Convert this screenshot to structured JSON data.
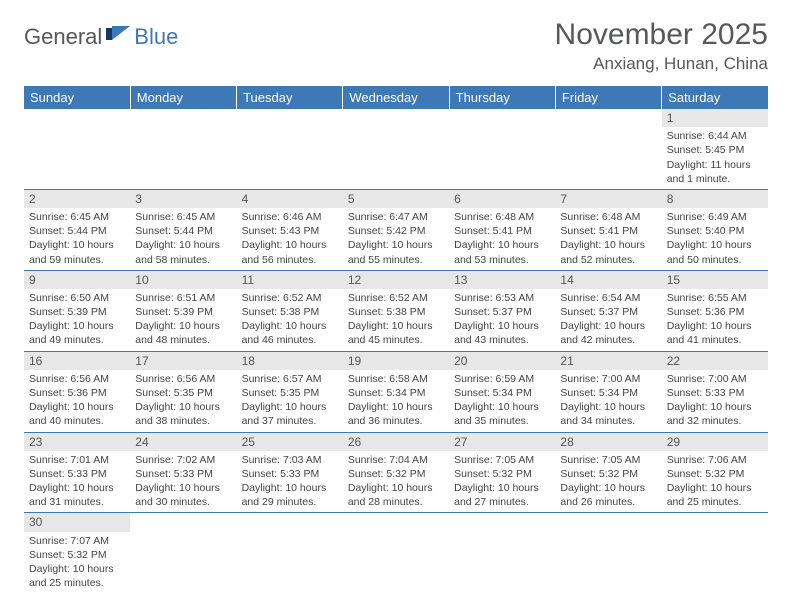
{
  "logo": {
    "text1": "General",
    "text2": "Blue"
  },
  "title": "November 2025",
  "location": "Anxiang, Hunan, China",
  "colors": {
    "header_bg": "#3c79b6",
    "header_text": "#ffffff",
    "daynum_bg": "#e7e7e8",
    "row_divider": "#3c79b6",
    "title_color": "#57585a"
  },
  "weekdays": [
    "Sunday",
    "Monday",
    "Tuesday",
    "Wednesday",
    "Thursday",
    "Friday",
    "Saturday"
  ],
  "weeks": [
    [
      null,
      null,
      null,
      null,
      null,
      null,
      {
        "n": "1",
        "sr": "Sunrise: 6:44 AM",
        "ss": "Sunset: 5:45 PM",
        "dl1": "Daylight: 11 hours",
        "dl2": "and 1 minute."
      }
    ],
    [
      {
        "n": "2",
        "sr": "Sunrise: 6:45 AM",
        "ss": "Sunset: 5:44 PM",
        "dl1": "Daylight: 10 hours",
        "dl2": "and 59 minutes."
      },
      {
        "n": "3",
        "sr": "Sunrise: 6:45 AM",
        "ss": "Sunset: 5:44 PM",
        "dl1": "Daylight: 10 hours",
        "dl2": "and 58 minutes."
      },
      {
        "n": "4",
        "sr": "Sunrise: 6:46 AM",
        "ss": "Sunset: 5:43 PM",
        "dl1": "Daylight: 10 hours",
        "dl2": "and 56 minutes."
      },
      {
        "n": "5",
        "sr": "Sunrise: 6:47 AM",
        "ss": "Sunset: 5:42 PM",
        "dl1": "Daylight: 10 hours",
        "dl2": "and 55 minutes."
      },
      {
        "n": "6",
        "sr": "Sunrise: 6:48 AM",
        "ss": "Sunset: 5:41 PM",
        "dl1": "Daylight: 10 hours",
        "dl2": "and 53 minutes."
      },
      {
        "n": "7",
        "sr": "Sunrise: 6:48 AM",
        "ss": "Sunset: 5:41 PM",
        "dl1": "Daylight: 10 hours",
        "dl2": "and 52 minutes."
      },
      {
        "n": "8",
        "sr": "Sunrise: 6:49 AM",
        "ss": "Sunset: 5:40 PM",
        "dl1": "Daylight: 10 hours",
        "dl2": "and 50 minutes."
      }
    ],
    [
      {
        "n": "9",
        "sr": "Sunrise: 6:50 AM",
        "ss": "Sunset: 5:39 PM",
        "dl1": "Daylight: 10 hours",
        "dl2": "and 49 minutes."
      },
      {
        "n": "10",
        "sr": "Sunrise: 6:51 AM",
        "ss": "Sunset: 5:39 PM",
        "dl1": "Daylight: 10 hours",
        "dl2": "and 48 minutes."
      },
      {
        "n": "11",
        "sr": "Sunrise: 6:52 AM",
        "ss": "Sunset: 5:38 PM",
        "dl1": "Daylight: 10 hours",
        "dl2": "and 46 minutes."
      },
      {
        "n": "12",
        "sr": "Sunrise: 6:52 AM",
        "ss": "Sunset: 5:38 PM",
        "dl1": "Daylight: 10 hours",
        "dl2": "and 45 minutes."
      },
      {
        "n": "13",
        "sr": "Sunrise: 6:53 AM",
        "ss": "Sunset: 5:37 PM",
        "dl1": "Daylight: 10 hours",
        "dl2": "and 43 minutes."
      },
      {
        "n": "14",
        "sr": "Sunrise: 6:54 AM",
        "ss": "Sunset: 5:37 PM",
        "dl1": "Daylight: 10 hours",
        "dl2": "and 42 minutes."
      },
      {
        "n": "15",
        "sr": "Sunrise: 6:55 AM",
        "ss": "Sunset: 5:36 PM",
        "dl1": "Daylight: 10 hours",
        "dl2": "and 41 minutes."
      }
    ],
    [
      {
        "n": "16",
        "sr": "Sunrise: 6:56 AM",
        "ss": "Sunset: 5:36 PM",
        "dl1": "Daylight: 10 hours",
        "dl2": "and 40 minutes."
      },
      {
        "n": "17",
        "sr": "Sunrise: 6:56 AM",
        "ss": "Sunset: 5:35 PM",
        "dl1": "Daylight: 10 hours",
        "dl2": "and 38 minutes."
      },
      {
        "n": "18",
        "sr": "Sunrise: 6:57 AM",
        "ss": "Sunset: 5:35 PM",
        "dl1": "Daylight: 10 hours",
        "dl2": "and 37 minutes."
      },
      {
        "n": "19",
        "sr": "Sunrise: 6:58 AM",
        "ss": "Sunset: 5:34 PM",
        "dl1": "Daylight: 10 hours",
        "dl2": "and 36 minutes."
      },
      {
        "n": "20",
        "sr": "Sunrise: 6:59 AM",
        "ss": "Sunset: 5:34 PM",
        "dl1": "Daylight: 10 hours",
        "dl2": "and 35 minutes."
      },
      {
        "n": "21",
        "sr": "Sunrise: 7:00 AM",
        "ss": "Sunset: 5:34 PM",
        "dl1": "Daylight: 10 hours",
        "dl2": "and 34 minutes."
      },
      {
        "n": "22",
        "sr": "Sunrise: 7:00 AM",
        "ss": "Sunset: 5:33 PM",
        "dl1": "Daylight: 10 hours",
        "dl2": "and 32 minutes."
      }
    ],
    [
      {
        "n": "23",
        "sr": "Sunrise: 7:01 AM",
        "ss": "Sunset: 5:33 PM",
        "dl1": "Daylight: 10 hours",
        "dl2": "and 31 minutes."
      },
      {
        "n": "24",
        "sr": "Sunrise: 7:02 AM",
        "ss": "Sunset: 5:33 PM",
        "dl1": "Daylight: 10 hours",
        "dl2": "and 30 minutes."
      },
      {
        "n": "25",
        "sr": "Sunrise: 7:03 AM",
        "ss": "Sunset: 5:33 PM",
        "dl1": "Daylight: 10 hours",
        "dl2": "and 29 minutes."
      },
      {
        "n": "26",
        "sr": "Sunrise: 7:04 AM",
        "ss": "Sunset: 5:32 PM",
        "dl1": "Daylight: 10 hours",
        "dl2": "and 28 minutes."
      },
      {
        "n": "27",
        "sr": "Sunrise: 7:05 AM",
        "ss": "Sunset: 5:32 PM",
        "dl1": "Daylight: 10 hours",
        "dl2": "and 27 minutes."
      },
      {
        "n": "28",
        "sr": "Sunrise: 7:05 AM",
        "ss": "Sunset: 5:32 PM",
        "dl1": "Daylight: 10 hours",
        "dl2": "and 26 minutes."
      },
      {
        "n": "29",
        "sr": "Sunrise: 7:06 AM",
        "ss": "Sunset: 5:32 PM",
        "dl1": "Daylight: 10 hours",
        "dl2": "and 25 minutes."
      }
    ],
    [
      {
        "n": "30",
        "sr": "Sunrise: 7:07 AM",
        "ss": "Sunset: 5:32 PM",
        "dl1": "Daylight: 10 hours",
        "dl2": "and 25 minutes."
      },
      null,
      null,
      null,
      null,
      null,
      null
    ]
  ]
}
